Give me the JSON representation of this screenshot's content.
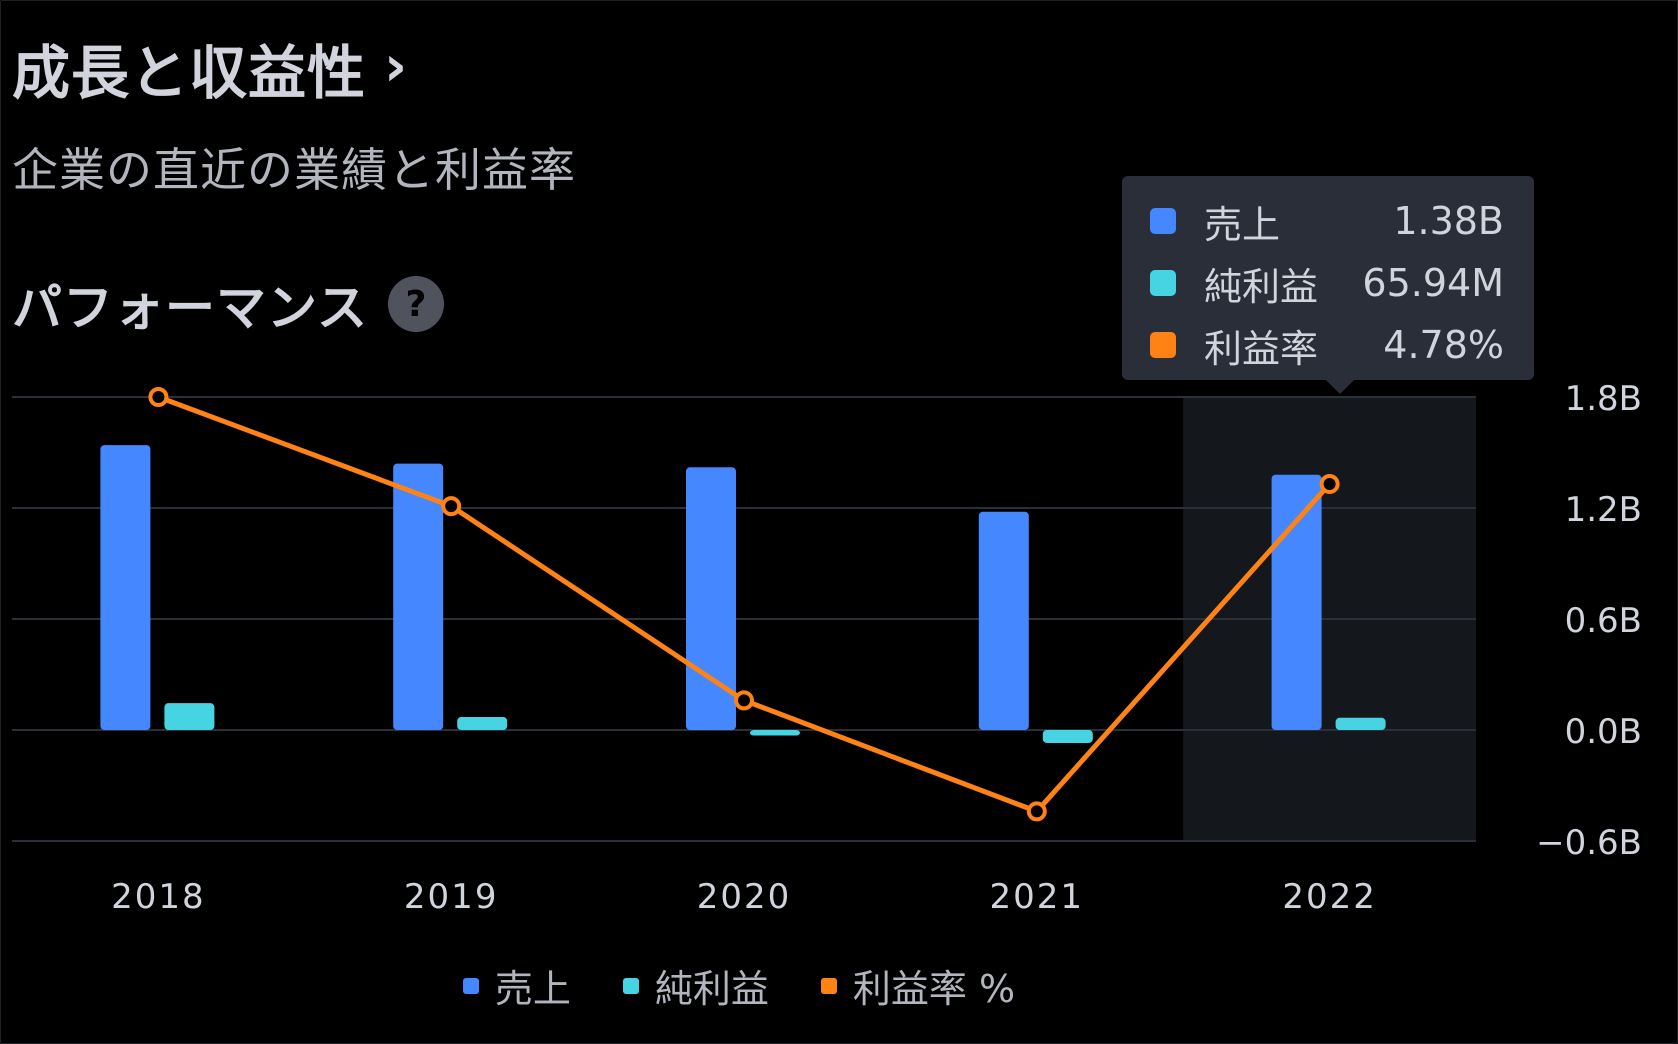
{
  "header": {
    "title": "成長と収益性",
    "chevron": "›",
    "subtitle": "企業の直近の業績と利益率"
  },
  "section": {
    "title": "パフォーマンス",
    "help_icon": "?"
  },
  "colors": {
    "revenue": "#4487ff",
    "net_income": "#47d4e2",
    "margin": "#ff8215",
    "highlight": "#14171c",
    "grid": "#2b2f38",
    "axis_text": "#d1d4dc"
  },
  "tooltip": {
    "rows": [
      {
        "label": "売上",
        "value": "1.38B",
        "color": "#4487ff"
      },
      {
        "label": "純利益",
        "value": "65.94M",
        "color": "#47d4e2"
      },
      {
        "label": "利益率",
        "value": "4.78%",
        "color": "#ff8215"
      }
    ]
  },
  "legend": [
    {
      "label": "売上",
      "color": "#4487ff"
    },
    {
      "label": "純利益",
      "color": "#47d4e2"
    },
    {
      "label": "利益率 %",
      "color": "#ff8215"
    }
  ],
  "chart_data": {
    "type": "bar",
    "categories": [
      "2018",
      "2019",
      "2020",
      "2021",
      "2022"
    ],
    "highlighted_category": "2022",
    "y_ticks": [
      "1.8B",
      "1.2B",
      "0.6B",
      "0.0B",
      "−0.6B"
    ],
    "y_tick_values": [
      1.8,
      1.2,
      0.6,
      0.0,
      -0.6
    ],
    "ylim": [
      -0.6,
      1.8
    ],
    "grid": true,
    "legend_position": "bottom",
    "series": [
      {
        "name": "売上",
        "type": "bar",
        "values": [
          1.54,
          1.44,
          1.42,
          1.18,
          1.38
        ]
      },
      {
        "name": "純利益",
        "type": "bar",
        "values": [
          0.145,
          0.07,
          -0.03,
          -0.07,
          0.066
        ]
      },
      {
        "name": "利益率 %",
        "type": "line",
        "values": [
          1.8,
          1.21,
          0.16,
          -0.44,
          1.33
        ]
      }
    ]
  }
}
